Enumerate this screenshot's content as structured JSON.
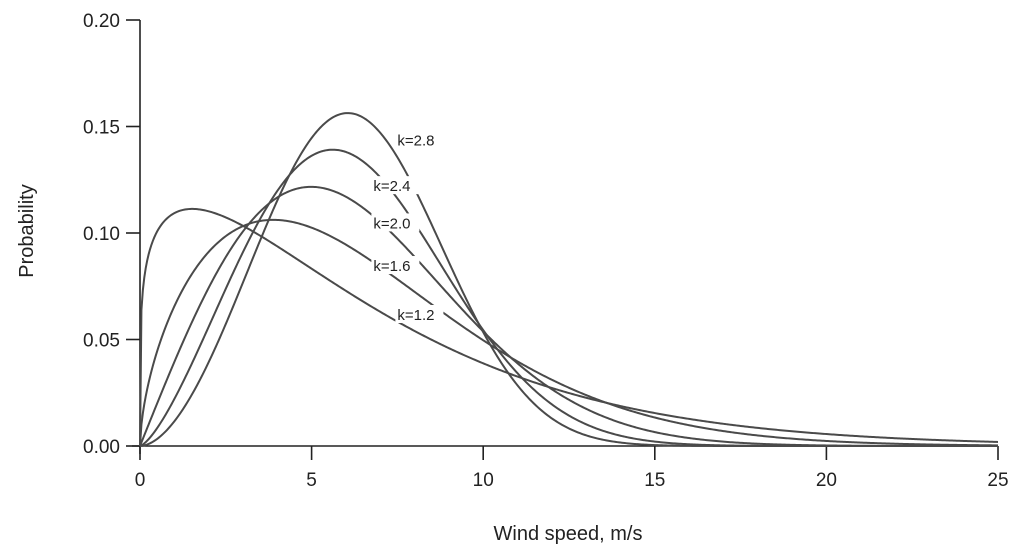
{
  "chart_data": {
    "type": "line",
    "title": "",
    "xlabel": "Wind speed, m/s",
    "ylabel": "Probability",
    "xlim": [
      0,
      25
    ],
    "ylim": [
      0,
      0.2
    ],
    "x_ticks": [
      "0",
      "5",
      "10",
      "15",
      "20",
      "25"
    ],
    "y_ticks": [
      "0.00",
      "0.05",
      "0.10",
      "0.15",
      "0.20"
    ],
    "grid": false,
    "series_color": "#4a4a4a",
    "series": [
      {
        "name": "k=1.2",
        "k": 1.2,
        "c": 6.77,
        "label_at": [
          7.5,
          0.0615
        ]
      },
      {
        "name": "k=1.6",
        "k": 1.6,
        "c": 7.17,
        "label_at": [
          6.8,
          0.0845
        ]
      },
      {
        "name": "k=2.0",
        "k": 2.0,
        "c": 7.05,
        "label_at": [
          6.8,
          0.1045
        ]
      },
      {
        "name": "k=2.4",
        "k": 2.4,
        "c": 7.03,
        "label_at": [
          6.8,
          0.122
        ]
      },
      {
        "name": "k=2.8",
        "k": 2.8,
        "c": 7.09,
        "label_at": [
          7.5,
          0.1435
        ]
      }
    ]
  }
}
